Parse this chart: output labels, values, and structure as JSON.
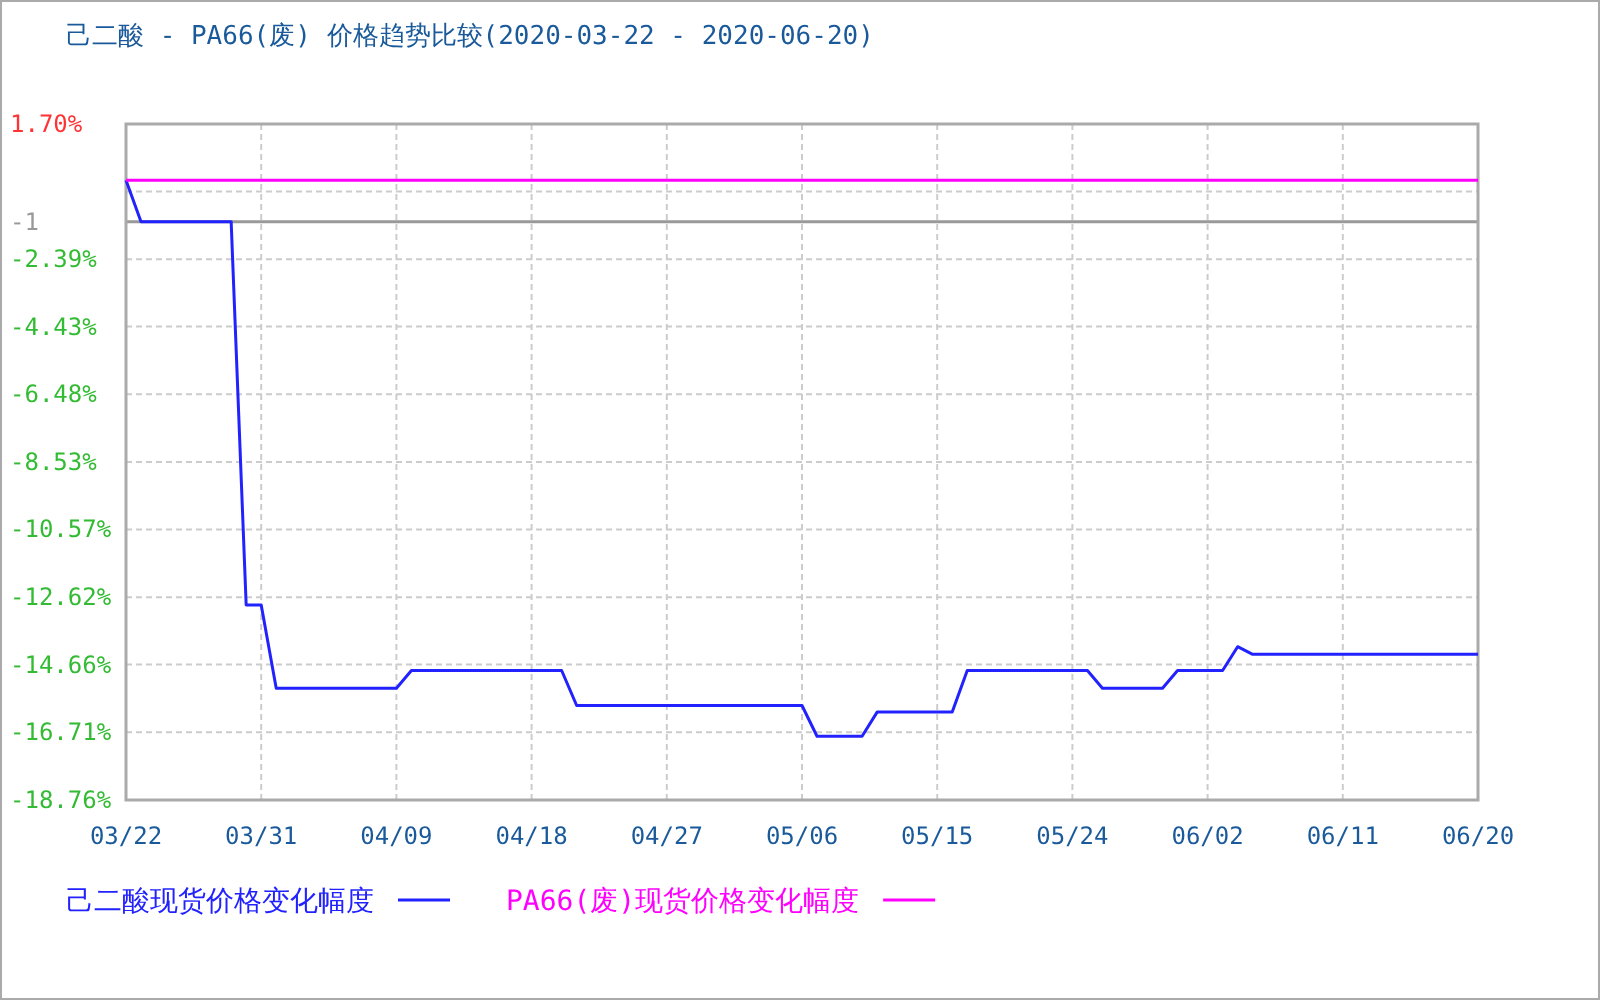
{
  "chart_data": {
    "type": "line",
    "title": "己二酸 - PA66(废) 价格趋势比较(2020-03-22 - 2020-06-20)",
    "series": [
      {
        "name": "己二酸现货价格变化幅度",
        "color": "#2222ff",
        "x": [
          "2020-03-22",
          "2020-03-23",
          "2020-03-29",
          "2020-03-30",
          "2020-03-31",
          "2020-04-01",
          "2020-04-09",
          "2020-04-10",
          "2020-04-20",
          "2020-04-21",
          "2020-05-06",
          "2020-05-07",
          "2020-05-10",
          "2020-05-11",
          "2020-05-16",
          "2020-05-17",
          "2020-05-25",
          "2020-05-26",
          "2020-05-30",
          "2020-05-31",
          "2020-06-03",
          "2020-06-04",
          "2020-06-05",
          "2020-06-20"
        ],
        "values": [
          0,
          -1.26,
          -1.26,
          -12.86,
          -12.86,
          -15.38,
          -15.38,
          -14.84,
          -14.84,
          -15.9,
          -15.9,
          -16.83,
          -16.83,
          -16.1,
          -16.1,
          -14.84,
          -14.84,
          -15.38,
          -15.38,
          -14.84,
          -14.84,
          -14.12,
          -14.35,
          -14.35
        ]
      },
      {
        "name": "PA66(废)现货价格变化幅度",
        "color": "#ff00ff",
        "x": [
          "2020-03-22",
          "2020-06-20"
        ],
        "values": [
          0,
          0
        ]
      }
    ],
    "xlim": [
      "2020-03-22",
      "2020-06-20"
    ],
    "xticks": [
      {
        "value": "2020-03-22",
        "label": "03/22"
      },
      {
        "value": "2020-03-31",
        "label": "03/31"
      },
      {
        "value": "2020-04-09",
        "label": "04/09"
      },
      {
        "value": "2020-04-18",
        "label": "04/18"
      },
      {
        "value": "2020-04-27",
        "label": "04/27"
      },
      {
        "value": "2020-05-06",
        "label": "05/06"
      },
      {
        "value": "2020-05-15",
        "label": "05/15"
      },
      {
        "value": "2020-05-24",
        "label": "05/24"
      },
      {
        "value": "2020-06-02",
        "label": "06/02"
      },
      {
        "value": "2020-06-11",
        "label": "06/11"
      },
      {
        "value": "2020-06-20",
        "label": "06/20"
      }
    ],
    "ylim": [
      -18.76,
      1.7
    ],
    "yticks": [
      {
        "value": 1.7,
        "label": "1.70%"
      },
      {
        "value": -0.34,
        "label": null
      },
      {
        "value": -2.39,
        "label": "-2.39%"
      },
      {
        "value": -4.43,
        "label": "-4.43%"
      },
      {
        "value": -6.48,
        "label": "-6.48%"
      },
      {
        "value": -8.53,
        "label": "-8.53%"
      },
      {
        "value": -10.57,
        "label": "-10.57%"
      },
      {
        "value": -12.62,
        "label": "-12.62%"
      },
      {
        "value": -14.66,
        "label": "-14.66%"
      },
      {
        "value": -16.71,
        "label": "-16.71%"
      },
      {
        "value": -18.76,
        "label": "-18.76%"
      }
    ],
    "ref_lines": [
      {
        "axis": "y",
        "value": -1.26,
        "label": "-1",
        "color": "#999999"
      }
    ],
    "grid": true,
    "legend": "bottom"
  }
}
